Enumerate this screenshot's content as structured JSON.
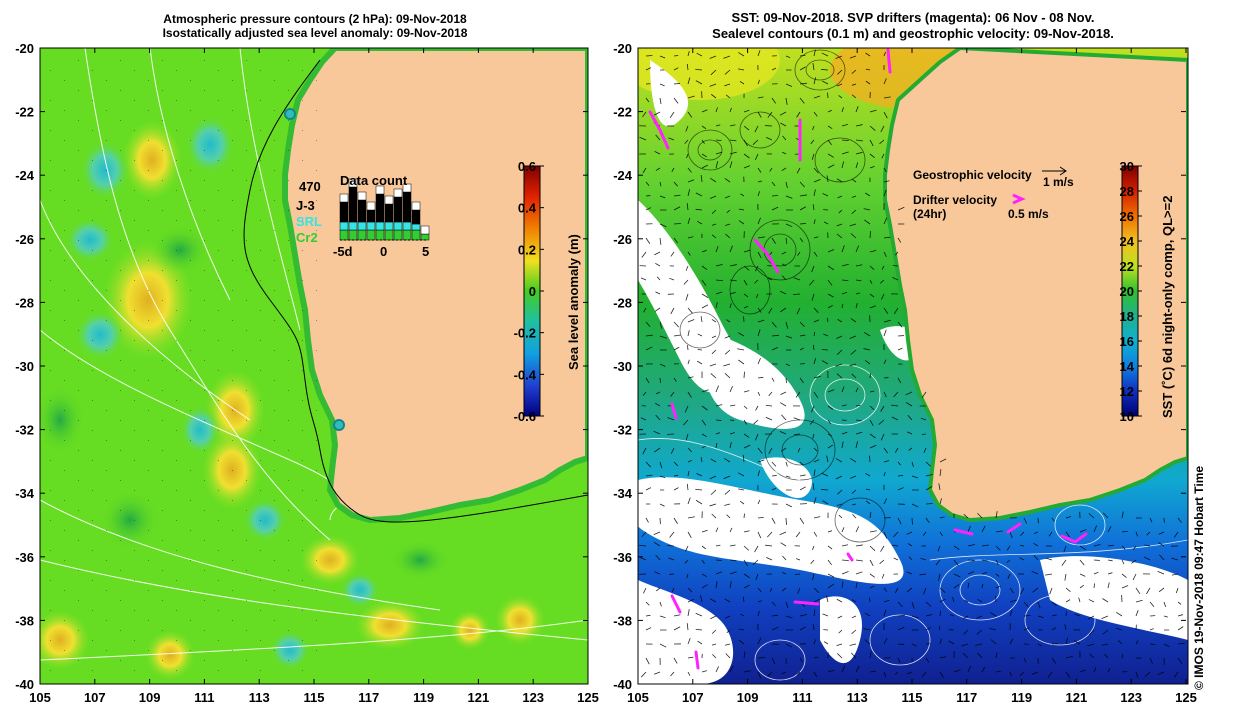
{
  "left_panel": {
    "title_line1": "Atmospheric pressure contours (2 hPa): 09-Nov-2018",
    "title_line2": "Isostatically adjusted sea level anomaly: 09-Nov-2018",
    "lat_labels": [
      "-20",
      "-22",
      "-24",
      "-26",
      "-28",
      "-30",
      "-32",
      "-34",
      "-36",
      "-38",
      "-40"
    ],
    "lon_labels": [
      "105",
      "107",
      "109",
      "111",
      "113",
      "115",
      "117",
      "119",
      "121",
      "123",
      "125"
    ],
    "colorbar": {
      "label": "Sea level anomaly (m)",
      "ticks": [
        "0.6",
        "0.4",
        "0.2",
        "0",
        "-0.2",
        "-0.4",
        "-0.6"
      ]
    },
    "data_count": {
      "title": "Data count",
      "max_value": "470",
      "legend": [
        {
          "name": "J-3",
          "color": "#000000"
        },
        {
          "name": "SRL",
          "color": "#33e5e5"
        },
        {
          "name": "Cr2",
          "color": "#33cc33"
        }
      ],
      "axis_labels": [
        "-5d",
        "0",
        "5"
      ]
    }
  },
  "right_panel": {
    "title_line1": "SST: 09-Nov-2018. SVP drifters (magenta): 06 Nov - 08 Nov.",
    "title_line2": "Sealevel contours (0.1 m) and geostrophic velocity: 09-Nov-2018.",
    "lat_labels": [
      "-20",
      "-22",
      "-24",
      "-26",
      "-28",
      "-30",
      "-32",
      "-34",
      "-36",
      "-38",
      "-40"
    ],
    "lon_labels": [
      "105",
      "107",
      "109",
      "111",
      "113",
      "115",
      "117",
      "119",
      "121",
      "123",
      "125"
    ],
    "legend": {
      "geostrophic_label": "Geostrophic velocity",
      "geostrophic_scale": "1 m/s",
      "drifter_label": "Drifter velocity",
      "drifter_sub": "(24hr)",
      "drifter_scale": "0.5 m/s"
    },
    "colorbar": {
      "label": "SST (˚C) 6d night-only comp, QL>=2",
      "ticks": [
        "30",
        "28",
        "26",
        "24",
        "22",
        "20",
        "18",
        "16",
        "14",
        "12",
        "10"
      ]
    }
  },
  "credit": "© IMOS 19-Nov-2018 09:47 Hobart Time",
  "colors": {
    "land": "#f9c89a",
    "sla_green": "#66dd22",
    "sst_green": "#22bb33",
    "drifter": "#ff22ff"
  }
}
